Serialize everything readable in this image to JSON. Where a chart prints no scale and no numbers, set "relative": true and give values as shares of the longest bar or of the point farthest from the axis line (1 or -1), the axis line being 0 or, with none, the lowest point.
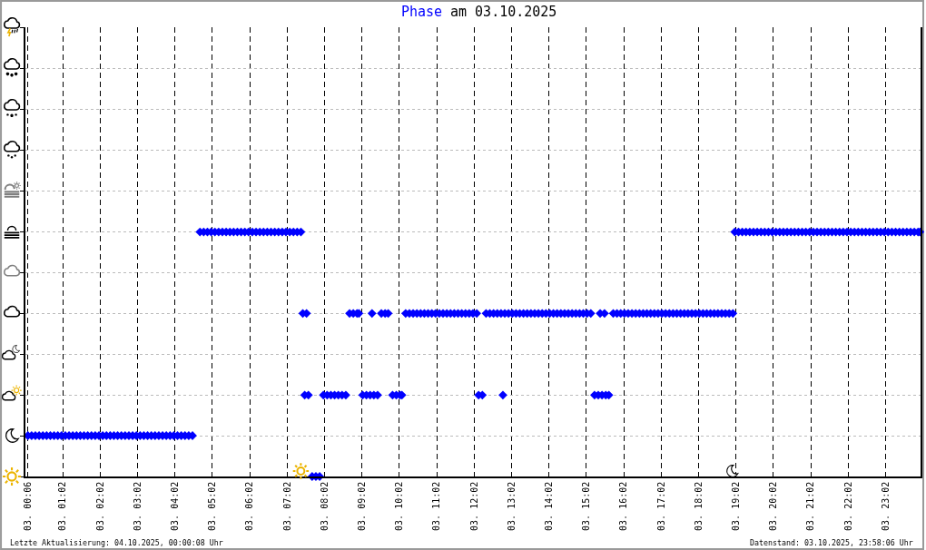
{
  "chart_data": {
    "type": "scatter",
    "title": "am 03.10.2025",
    "relative": true,
    "annotations": [
      "Letzte Aktualisierung: 04.10.2025, 00:00:08 Uhr",
      "Datenstand: 03.10.2025, 23:58:06 Uhr"
    ],
    "x": [
      "2025-10-03T00:06",
      "2025-10-03T00:12",
      "2025-10-03T00:18",
      "2025-10-03T00:24",
      "2025-10-03T00:30",
      "2025-10-03T00:36",
      "2025-10-03T00:42",
      "2025-10-03T00:48",
      "2025-10-03T00:54",
      "2025-10-03T01:00",
      "2025-10-03T01:06",
      "2025-10-03T01:12",
      "2025-10-03T01:18",
      "2025-10-03T01:24",
      "2025-10-03T01:30",
      "2025-10-03T01:36",
      "2025-10-03T01:42",
      "2025-10-03T01:48",
      "2025-10-03T01:54",
      "2025-10-03T02:00",
      "2025-10-03T02:06",
      "2025-10-03T02:12",
      "2025-10-03T02:18",
      "2025-10-03T02:24",
      "2025-10-03T02:30",
      "2025-10-03T02:36",
      "2025-10-03T02:42",
      "2025-10-03T02:48",
      "2025-10-03T02:54",
      "2025-10-03T03:00",
      "2025-10-03T03:06",
      "2025-10-03T03:12",
      "2025-10-03T03:18",
      "2025-10-03T03:24",
      "2025-10-03T03:30",
      "2025-10-03T03:36",
      "2025-10-03T03:42",
      "2025-10-03T03:48",
      "2025-10-03T03:54",
      "2025-10-03T04:00",
      "2025-10-03T04:06",
      "2025-10-03T04:12",
      "2025-10-03T04:18",
      "2025-10-03T04:24",
      "2025-10-03T04:30",
      "2025-10-03T04:42",
      "2025-10-03T04:48",
      "2025-10-03T04:54",
      "2025-10-03T05:00",
      "2025-10-03T05:06",
      "2025-10-03T05:12",
      "2025-10-03T05:18",
      "2025-10-03T05:24",
      "2025-10-03T05:30",
      "2025-10-03T05:36",
      "2025-10-03T05:42",
      "2025-10-03T05:48",
      "2025-10-03T05:54",
      "2025-10-03T06:00",
      "2025-10-03T06:06",
      "2025-10-03T06:12",
      "2025-10-03T06:18",
      "2025-10-03T06:24",
      "2025-10-03T06:30",
      "2025-10-03T06:36",
      "2025-10-03T06:42",
      "2025-10-03T06:48",
      "2025-10-03T06:54",
      "2025-10-03T07:00",
      "2025-10-03T07:06",
      "2025-10-03T07:12",
      "2025-10-03T07:18",
      "2025-10-03T07:24",
      "2025-10-03T07:27",
      "2025-10-03T07:30",
      "2025-10-03T07:33",
      "2025-10-03T07:36",
      "2025-10-03T07:42",
      "2025-10-03T07:48",
      "2025-10-03T07:54",
      "2025-10-03T08:00",
      "2025-10-03T08:06",
      "2025-10-03T08:12",
      "2025-10-03T08:18",
      "2025-10-03T08:24",
      "2025-10-03T08:30",
      "2025-10-03T08:36",
      "2025-10-03T08:42",
      "2025-10-03T08:48",
      "2025-10-03T08:54",
      "2025-10-03T08:57",
      "2025-10-03T09:03",
      "2025-10-03T09:09",
      "2025-10-03T09:15",
      "2025-10-03T09:18",
      "2025-10-03T09:21",
      "2025-10-03T09:27",
      "2025-10-03T09:33",
      "2025-10-03T09:39",
      "2025-10-03T09:44",
      "2025-10-03T09:51",
      "2025-10-03T09:57",
      "2025-10-03T10:03",
      "2025-10-03T10:06",
      "2025-10-03T10:12",
      "2025-10-03T10:18",
      "2025-10-03T10:24",
      "2025-10-03T10:30",
      "2025-10-03T10:36",
      "2025-10-03T10:42",
      "2025-10-03T10:48",
      "2025-10-03T10:54",
      "2025-10-03T11:00",
      "2025-10-03T11:06",
      "2025-10-03T11:12",
      "2025-10-03T11:18",
      "2025-10-03T11:24",
      "2025-10-03T11:30",
      "2025-10-03T11:36",
      "2025-10-03T11:42",
      "2025-10-03T11:48",
      "2025-10-03T11:54",
      "2025-10-03T12:00",
      "2025-10-03T12:06",
      "2025-10-03T12:09",
      "2025-10-03T12:15",
      "2025-10-03T12:21",
      "2025-10-03T12:27",
      "2025-10-03T12:33",
      "2025-10-03T12:39",
      "2025-10-03T12:45",
      "2025-10-03T12:48",
      "2025-10-03T12:51",
      "2025-10-03T12:57",
      "2025-10-03T13:03",
      "2025-10-03T13:09",
      "2025-10-03T13:15",
      "2025-10-03T13:21",
      "2025-10-03T13:27",
      "2025-10-03T13:33",
      "2025-10-03T13:39",
      "2025-10-03T13:45",
      "2025-10-03T13:51",
      "2025-10-03T13:57",
      "2025-10-03T14:03",
      "2025-10-03T14:09",
      "2025-10-03T14:15",
      "2025-10-03T14:21",
      "2025-10-03T14:27",
      "2025-10-03T14:33",
      "2025-10-03T14:39",
      "2025-10-03T14:45",
      "2025-10-03T14:51",
      "2025-10-03T14:57",
      "2025-10-03T15:03",
      "2025-10-03T15:09",
      "2025-10-03T15:15",
      "2025-10-03T15:21",
      "2025-10-03T15:24",
      "2025-10-03T15:27",
      "2025-10-03T15:31",
      "2025-10-03T15:33",
      "2025-10-03T15:38",
      "2025-10-03T15:45",
      "2025-10-03T15:51",
      "2025-10-03T15:57",
      "2025-10-03T16:03",
      "2025-10-03T16:09",
      "2025-10-03T16:15",
      "2025-10-03T16:21",
      "2025-10-03T16:27",
      "2025-10-03T16:33",
      "2025-10-03T16:39",
      "2025-10-03T16:45",
      "2025-10-03T16:51",
      "2025-10-03T16:57",
      "2025-10-03T17:03",
      "2025-10-03T17:09",
      "2025-10-03T17:15",
      "2025-10-03T17:21",
      "2025-10-03T17:27",
      "2025-10-03T17:33",
      "2025-10-03T17:39",
      "2025-10-03T17:45",
      "2025-10-03T17:51",
      "2025-10-03T17:57",
      "2025-10-03T18:03",
      "2025-10-03T18:09",
      "2025-10-03T18:15",
      "2025-10-03T18:21",
      "2025-10-03T18:27",
      "2025-10-03T18:33",
      "2025-10-03T18:39",
      "2025-10-03T18:45",
      "2025-10-03T18:51",
      "2025-10-03T18:57",
      "2025-10-03T19:00",
      "2025-10-03T19:06",
      "2025-10-03T19:12",
      "2025-10-03T19:18",
      "2025-10-03T19:24",
      "2025-10-03T19:30",
      "2025-10-03T19:36",
      "2025-10-03T19:42",
      "2025-10-03T19:48",
      "2025-10-03T19:54",
      "2025-10-03T20:00",
      "2025-10-03T20:06",
      "2025-10-03T20:12",
      "2025-10-03T20:18",
      "2025-10-03T20:24",
      "2025-10-03T20:30",
      "2025-10-03T20:36",
      "2025-10-03T20:42",
      "2025-10-03T20:48",
      "2025-10-03T20:54",
      "2025-10-03T21:00",
      "2025-10-03T21:06",
      "2025-10-03T21:12",
      "2025-10-03T21:18",
      "2025-10-03T21:24",
      "2025-10-03T21:30",
      "2025-10-03T21:36",
      "2025-10-03T21:42",
      "2025-10-03T21:48",
      "2025-10-03T21:54",
      "2025-10-03T22:00",
      "2025-10-03T22:06",
      "2025-10-03T22:12",
      "2025-10-03T22:18",
      "2025-10-03T22:24",
      "2025-10-03T22:30",
      "2025-10-03T22:36",
      "2025-10-03T22:42",
      "2025-10-03T22:48",
      "2025-10-03T22:54",
      "2025-10-03T23:00",
      "2025-10-03T23:06",
      "2025-10-03T23:12",
      "2025-10-03T23:18",
      "2025-10-03T23:24",
      "2025-10-03T23:30",
      "2025-10-03T23:36",
      "2025-10-03T23:42",
      "2025-10-03T23:48",
      "2025-10-03T23:54",
      "2025-10-03T23:57"
    ],
    "series": [
      {
        "name": "Phase",
        "color": "#0000ff",
        "values": [
          0.167,
          0.167,
          0.167,
          0.167,
          0.167,
          0.167,
          0.167,
          0.167,
          0.167,
          0.167,
          0.167,
          0.167,
          0.167,
          0.167,
          0.167,
          0.167,
          0.167,
          0.167,
          0.167,
          0.167,
          0.167,
          0.167,
          0.167,
          0.167,
          0.167,
          0.167,
          0.167,
          0.167,
          0.167,
          0.167,
          0.167,
          0.167,
          0.167,
          0.167,
          0.167,
          0.167,
          0.167,
          0.167,
          0.167,
          0.167,
          0.167,
          0.167,
          0.167,
          0.167,
          0.167,
          1,
          1,
          1,
          1,
          1,
          1,
          1,
          1,
          1,
          1,
          1,
          1,
          1,
          1,
          1,
          1,
          1,
          1,
          1,
          1,
          1,
          1,
          1,
          1,
          1,
          1,
          1,
          1,
          0.667,
          0.333,
          0.667,
          0.333,
          0,
          0,
          0,
          0.333,
          0.333,
          0.333,
          0.333,
          0.333,
          0.333,
          0.333,
          0.667,
          0.667,
          0.667,
          0.667,
          0.333,
          0.333,
          0.333,
          0.667,
          0.333,
          0.333,
          0.667,
          0.667,
          0.667,
          0.333,
          0.333,
          0.333,
          0.333,
          0.667,
          0.667,
          0.667,
          0.667,
          0.667,
          0.667,
          0.667,
          0.667,
          0.667,
          0.667,
          0.667,
          0.667,
          0.667,
          0.667,
          0.667,
          0.667,
          0.667,
          0.667,
          0.667,
          0.667,
          0.333,
          0.333,
          0.667,
          0.667,
          0.667,
          0.667,
          0.667,
          0.333,
          0.667,
          0.667,
          0.667,
          0.667,
          0.667,
          0.667,
          0.667,
          0.667,
          0.667,
          0.667,
          0.667,
          0.667,
          0.667,
          0.667,
          0.667,
          0.667,
          0.667,
          0.667,
          0.667,
          0.667,
          0.667,
          0.667,
          0.667,
          0.667,
          0.333,
          0.333,
          0.667,
          0.333,
          0.667,
          0.333,
          0.333,
          0.667,
          0.667,
          0.667,
          0.667,
          0.667,
          0.667,
          0.667,
          0.667,
          0.667,
          0.667,
          0.667,
          0.667,
          0.667,
          0.667,
          0.667,
          0.667,
          0.667,
          0.667,
          0.667,
          0.667,
          0.667,
          0.667,
          0.667,
          0.667,
          0.667,
          0.667,
          0.667,
          0.667,
          0.667,
          0.667,
          0.667,
          0.667,
          0.667,
          1,
          1,
          1,
          1,
          1,
          1,
          1,
          1,
          1,
          1,
          1,
          1,
          1,
          1,
          1,
          1,
          1,
          1,
          1,
          1,
          1,
          1,
          1,
          1,
          1,
          1,
          1,
          1,
          1,
          1,
          1,
          1,
          1,
          1,
          1,
          1,
          1,
          1,
          1,
          1,
          1,
          1,
          1,
          1,
          1,
          1,
          1,
          1,
          1,
          1,
          1
        ]
      }
    ],
    "xlim": [
      "2025-10-03T00:02",
      "2025-10-03T23:58"
    ],
    "xticks": [
      {
        "value": "2025-10-03T00:06",
        "label": "03. 00:06"
      },
      {
        "value": "2025-10-03T01:02",
        "label": "03. 01:02"
      },
      {
        "value": "2025-10-03T02:02",
        "label": "03. 02:02"
      },
      {
        "value": "2025-10-03T03:02",
        "label": "03. 03:02"
      },
      {
        "value": "2025-10-03T04:02",
        "label": "03. 04:02"
      },
      {
        "value": "2025-10-03T05:02",
        "label": "03. 05:02"
      },
      {
        "value": "2025-10-03T06:02",
        "label": "03. 06:02"
      },
      {
        "value": "2025-10-03T07:02",
        "label": "03. 07:02"
      },
      {
        "value": "2025-10-03T08:02",
        "label": "03. 08:02"
      },
      {
        "value": "2025-10-03T09:02",
        "label": "03. 09:02"
      },
      {
        "value": "2025-10-03T10:02",
        "label": "03. 10:02"
      },
      {
        "value": "2025-10-03T11:02",
        "label": "03. 11:02"
      },
      {
        "value": "2025-10-03T12:02",
        "label": "03. 12:02"
      },
      {
        "value": "2025-10-03T13:02",
        "label": "03. 13:02"
      },
      {
        "value": "2025-10-03T14:02",
        "label": "03. 14:02"
      },
      {
        "value": "2025-10-03T15:02",
        "label": "03. 15:02"
      },
      {
        "value": "2025-10-03T16:02",
        "label": "03. 16:02"
      },
      {
        "value": "2025-10-03T17:02",
        "label": "03. 17:02"
      },
      {
        "value": "2025-10-03T18:02",
        "label": "03. 18:02"
      },
      {
        "value": "2025-10-03T19:02",
        "label": "03. 19:02"
      },
      {
        "value": "2025-10-03T20:02",
        "label": "03. 20:02"
      },
      {
        "value": "2025-10-03T21:02",
        "label": "03. 21:02"
      },
      {
        "value": "2025-10-03T22:02",
        "label": "03. 22:02"
      },
      {
        "value": "2025-10-03T23:02",
        "label": "03. 23:02"
      }
    ],
    "tick_labels": "x",
    "grid": true,
    "legend": false,
    "marker": "diamond"
  }
}
